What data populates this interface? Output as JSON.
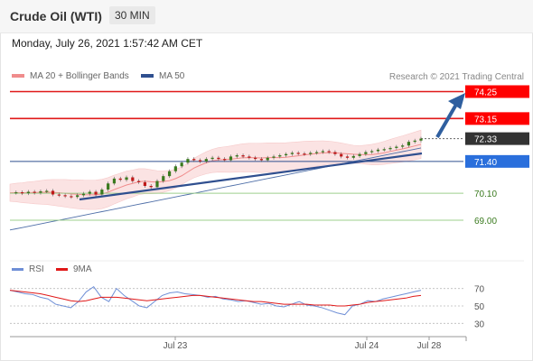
{
  "header": {
    "instrument": "Crude Oil (WTI)",
    "timeframe": "30 MIN"
  },
  "datetime": "Monday, July 26, 2021 1:57:42 AM CET",
  "legend": {
    "ma20": "MA 20 + Bollinger Bands",
    "ma50": "MA 50",
    "credit": "Research © 2021 Trading Central",
    "rsi": "RSI",
    "ma9": "9MA"
  },
  "colors": {
    "resistance": "#e01818",
    "support_dark": "#2f4f8f",
    "support_light": "#9dcf8e",
    "ma20": "#f08c8c",
    "bb_fill": "#fbe3e3",
    "ma50": "#4f6fa8",
    "rsi": "#6f8fd6",
    "rsi_ma": "#e01818",
    "arrow": "#2f5f9f",
    "label_res": "#ff0000",
    "label_cur": "#333333",
    "label_sup": "#2a6fdc",
    "text_sup": "#3a7a1e"
  },
  "chart_data": {
    "type": "line",
    "title": "Crude Oil (WTI)",
    "timeframe": "30 MIN",
    "x_ticks": [
      "Jul 23",
      "Jul 24",
      "Jul 28"
    ],
    "ylim": [
      67.6,
      74.6
    ],
    "price_series": [
      70.12,
      70.14,
      70.1,
      70.16,
      70.12,
      70.18,
      70.2,
      70.05,
      70.02,
      69.98,
      69.95,
      70.02,
      70.08,
      70.16,
      70.05,
      70.25,
      70.5,
      70.7,
      70.65,
      70.75,
      70.6,
      70.55,
      70.4,
      70.35,
      70.6,
      70.8,
      71.0,
      71.2,
      71.35,
      71.5,
      71.45,
      71.4,
      71.5,
      71.55,
      71.5,
      71.45,
      71.6,
      71.65,
      71.6,
      71.55,
      71.5,
      71.45,
      71.55,
      71.6,
      71.65,
      71.7,
      71.75,
      71.72,
      71.7,
      71.75,
      71.78,
      71.82,
      71.78,
      71.7,
      71.6,
      71.55,
      71.62,
      71.7,
      71.78,
      71.82,
      71.88,
      71.9,
      71.95,
      72.0,
      72.05,
      72.2,
      72.25,
      72.33
    ],
    "levels": [
      {
        "label": "74.25",
        "value": 74.25,
        "kind": "resistance"
      },
      {
        "label": "73.15",
        "value": 73.15,
        "kind": "resistance"
      },
      {
        "label": "72.33",
        "value": 72.33,
        "kind": "current"
      },
      {
        "label": "71.40",
        "value": 71.4,
        "kind": "support-strong"
      },
      {
        "label": "70.10",
        "value": 70.1,
        "kind": "support"
      },
      {
        "label": "69.00",
        "value": 69.0,
        "kind": "support"
      }
    ],
    "rsi_ticks": [
      70,
      50,
      30
    ],
    "rsi_series": [
      68,
      66,
      64,
      63,
      60,
      58,
      52,
      50,
      48,
      55,
      66,
      72,
      60,
      55,
      70,
      62,
      56,
      50,
      48,
      55,
      62,
      65,
      66,
      64,
      63,
      62,
      60,
      61,
      58,
      57,
      55,
      56,
      54,
      52,
      53,
      50,
      49,
      52,
      55,
      51,
      50,
      48,
      45,
      42,
      40,
      50,
      52,
      56,
      55,
      58,
      60,
      62,
      64,
      66,
      68
    ],
    "rsi_ma_series": [
      68,
      67,
      66,
      65,
      64,
      62,
      60,
      58,
      56,
      55,
      56,
      58,
      60,
      60,
      60,
      59,
      58,
      57,
      56,
      57,
      58,
      59,
      60,
      61,
      62,
      62,
      61,
      60,
      59,
      58,
      57,
      56,
      55,
      55,
      54,
      53,
      52,
      52,
      52,
      52,
      51,
      51,
      51,
      50,
      50,
      51,
      52,
      54,
      55,
      56,
      57,
      58,
      59,
      61,
      62
    ]
  }
}
